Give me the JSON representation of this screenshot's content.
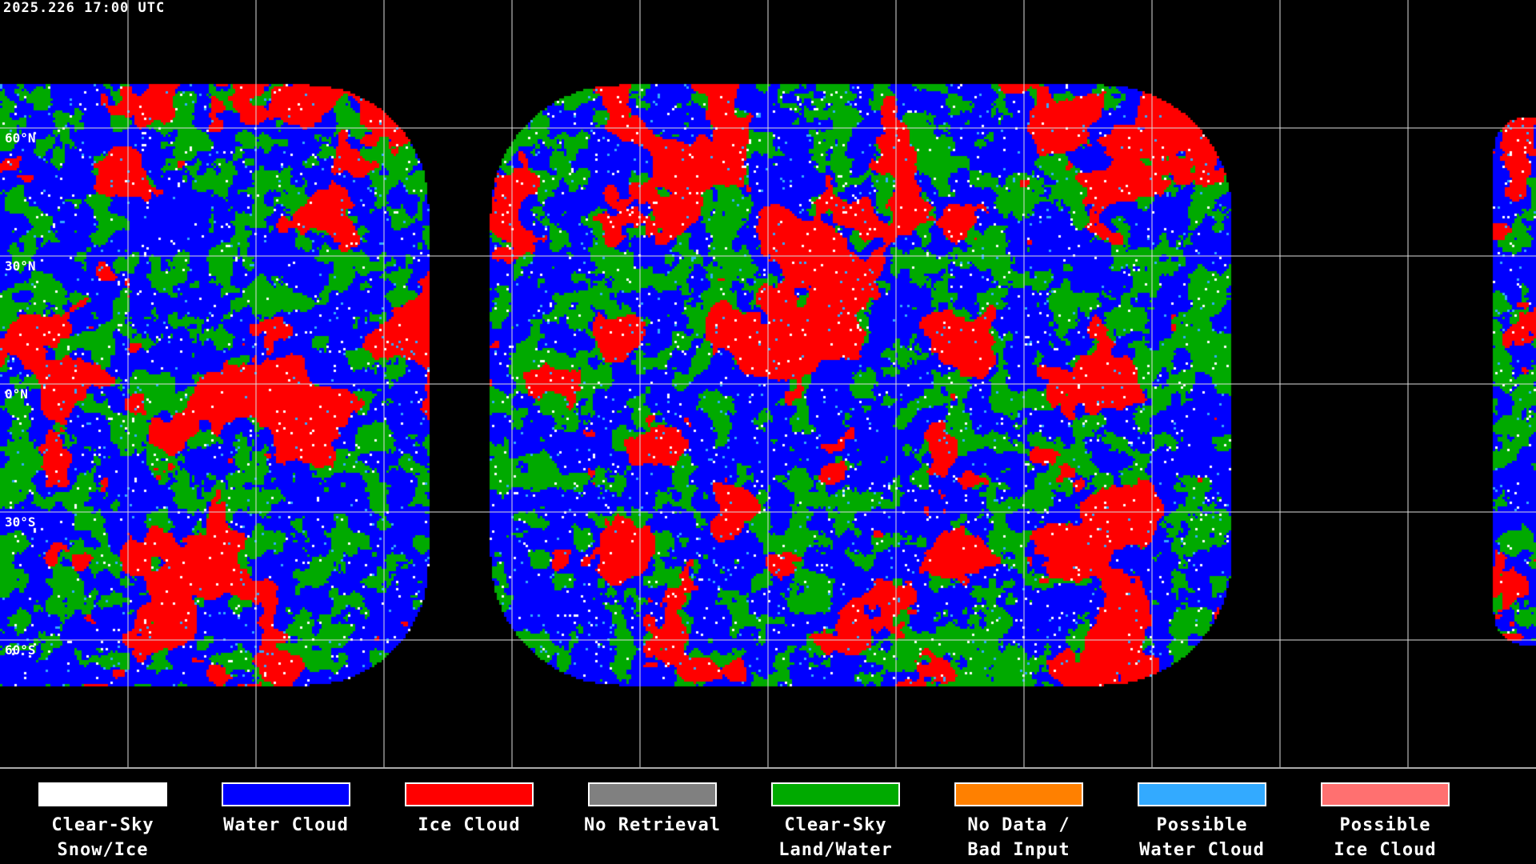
{
  "timestamp": "2025.226 17:00 UTC",
  "lat_labels": [
    "60°N",
    "30°N",
    "0°N",
    "30°S",
    "60°S"
  ],
  "legend": [
    {
      "line1": "Clear-Sky",
      "line2": "Snow/Ice",
      "color": "#ffffff"
    },
    {
      "line1": "Water Cloud",
      "line2": "",
      "color": "#0000ff"
    },
    {
      "line1": "Ice Cloud",
      "line2": "",
      "color": "#ff0000"
    },
    {
      "line1": "No Retrieval",
      "line2": "",
      "color": "#808080"
    },
    {
      "line1": "Clear-Sky",
      "line2": "Land/Water",
      "color": "#00aa00"
    },
    {
      "line1": "No Data /",
      "line2": "Bad Input",
      "color": "#ff8000"
    },
    {
      "line1": "Possible",
      "line2": "Water Cloud",
      "color": "#33aaff"
    },
    {
      "line1": "Possible",
      "line2": "Ice Cloud",
      "color": "#ff7070"
    }
  ]
}
